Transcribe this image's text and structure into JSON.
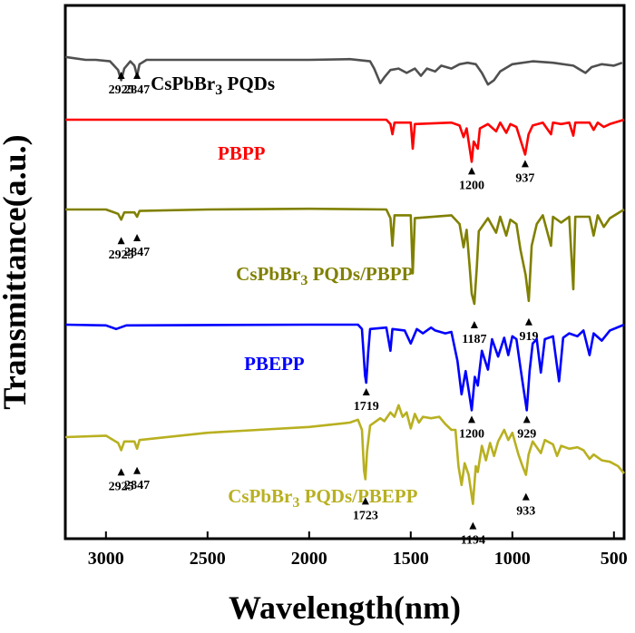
{
  "chart_data": {
    "type": "line",
    "title": "",
    "xlabel": "Wavelength(nm)",
    "ylabel": "Transmittance(a.u.)",
    "xlim": [
      3200,
      450
    ],
    "x_reversed": true,
    "x_ticks": [
      3000,
      2500,
      2000,
      1500,
      1000,
      500
    ],
    "y_ticks_shown": false,
    "grid": false,
    "legend": "inline labels",
    "series": [
      {
        "name": "CsPbBr",
        "sub": "3",
        "suffix": " PQDs",
        "color": "#505050",
        "label_wn": 2780,
        "points": [
          [
            3200,
            0.2
          ],
          [
            3100,
            0.0
          ],
          [
            3050,
            0.0
          ],
          [
            2980,
            -0.1
          ],
          [
            2940,
            -0.7
          ],
          [
            2925,
            -1.4
          ],
          [
            2910,
            -0.6
          ],
          [
            2880,
            -0.1
          ],
          [
            2860,
            -0.4
          ],
          [
            2847,
            -1.1
          ],
          [
            2835,
            -0.3
          ],
          [
            2800,
            0.0
          ],
          [
            2500,
            0.0
          ],
          [
            2000,
            0.0
          ],
          [
            1800,
            0.05
          ],
          [
            1700,
            -0.1
          ],
          [
            1680,
            -0.6
          ],
          [
            1650,
            -1.6
          ],
          [
            1630,
            -1.2
          ],
          [
            1600,
            -0.7
          ],
          [
            1560,
            -0.6
          ],
          [
            1520,
            -0.9
          ],
          [
            1480,
            -0.6
          ],
          [
            1450,
            -1.1
          ],
          [
            1420,
            -0.6
          ],
          [
            1380,
            -0.8
          ],
          [
            1350,
            -0.4
          ],
          [
            1300,
            -0.6
          ],
          [
            1260,
            -0.3
          ],
          [
            1220,
            -0.2
          ],
          [
            1180,
            -0.3
          ],
          [
            1150,
            -0.9
          ],
          [
            1120,
            -1.7
          ],
          [
            1090,
            -1.4
          ],
          [
            1060,
            -0.8
          ],
          [
            1000,
            -0.3
          ],
          [
            900,
            -0.1
          ],
          [
            800,
            -0.2
          ],
          [
            700,
            -0.4
          ],
          [
            640,
            -0.9
          ],
          [
            610,
            -0.5
          ],
          [
            560,
            -0.3
          ],
          [
            500,
            -0.4
          ],
          [
            460,
            -0.2
          ]
        ]
      },
      {
        "name": "PBPP",
        "sub": "",
        "suffix": "",
        "color": "#ff0000",
        "label_wn": 2450,
        "peaks": [
          1200,
          937
        ],
        "points": [
          [
            3200,
            0.0
          ],
          [
            2000,
            0.0
          ],
          [
            1620,
            0.0
          ],
          [
            1600,
            -0.3
          ],
          [
            1590,
            -1.0
          ],
          [
            1580,
            -0.2
          ],
          [
            1500,
            -0.2
          ],
          [
            1490,
            -2.0
          ],
          [
            1480,
            -0.3
          ],
          [
            1300,
            -0.2
          ],
          [
            1260,
            -0.4
          ],
          [
            1240,
            -1.2
          ],
          [
            1225,
            -0.6
          ],
          [
            1210,
            -2.0
          ],
          [
            1200,
            -2.9
          ],
          [
            1190,
            -1.5
          ],
          [
            1170,
            -2.0
          ],
          [
            1160,
            -0.6
          ],
          [
            1120,
            -0.3
          ],
          [
            1080,
            -0.8
          ],
          [
            1060,
            -0.2
          ],
          [
            1030,
            -0.9
          ],
          [
            1010,
            -0.3
          ],
          [
            980,
            -0.5
          ],
          [
            960,
            -1.4
          ],
          [
            937,
            -2.4
          ],
          [
            920,
            -1.0
          ],
          [
            900,
            -0.4
          ],
          [
            850,
            -0.2
          ],
          [
            810,
            -1.0
          ],
          [
            800,
            -0.2
          ],
          [
            760,
            -0.3
          ],
          [
            720,
            -0.2
          ],
          [
            700,
            -1.1
          ],
          [
            690,
            -0.2
          ],
          [
            620,
            -0.2
          ],
          [
            600,
            -0.7
          ],
          [
            580,
            -0.2
          ],
          [
            550,
            -0.5
          ],
          [
            520,
            -0.3
          ],
          [
            450,
            0.0
          ]
        ]
      },
      {
        "name": "CsPbBr",
        "sub": "3",
        "suffix": " PQDs/PBPP",
        "color": "#808000",
        "label_wn": 2360,
        "peaks": [
          2925,
          2847,
          1187,
          919
        ],
        "points": [
          [
            3200,
            0.0
          ],
          [
            3000,
            0.0
          ],
          [
            2940,
            -0.3
          ],
          [
            2925,
            -0.7
          ],
          [
            2910,
            -0.2
          ],
          [
            2860,
            -0.2
          ],
          [
            2847,
            -0.5
          ],
          [
            2835,
            -0.1
          ],
          [
            2500,
            0.0
          ],
          [
            2000,
            0.05
          ],
          [
            1620,
            0.0
          ],
          [
            1600,
            -0.6
          ],
          [
            1590,
            -2.5
          ],
          [
            1580,
            -0.4
          ],
          [
            1500,
            -0.4
          ],
          [
            1490,
            -4.4
          ],
          [
            1480,
            -0.6
          ],
          [
            1300,
            -0.4
          ],
          [
            1260,
            -1.0
          ],
          [
            1240,
            -2.6
          ],
          [
            1225,
            -1.4
          ],
          [
            1210,
            -4.0
          ],
          [
            1200,
            -5.8
          ],
          [
            1187,
            -6.5
          ],
          [
            1175,
            -4.0
          ],
          [
            1165,
            -1.5
          ],
          [
            1120,
            -0.6
          ],
          [
            1080,
            -1.6
          ],
          [
            1060,
            -0.5
          ],
          [
            1030,
            -1.8
          ],
          [
            1010,
            -0.7
          ],
          [
            980,
            -1.0
          ],
          [
            960,
            -2.8
          ],
          [
            935,
            -4.5
          ],
          [
            919,
            -6.3
          ],
          [
            905,
            -2.5
          ],
          [
            880,
            -1.0
          ],
          [
            850,
            -0.4
          ],
          [
            810,
            -2.5
          ],
          [
            800,
            -0.5
          ],
          [
            760,
            -0.9
          ],
          [
            720,
            -0.5
          ],
          [
            700,
            -5.5
          ],
          [
            690,
            -0.5
          ],
          [
            620,
            -0.5
          ],
          [
            600,
            -1.8
          ],
          [
            580,
            -0.4
          ],
          [
            550,
            -1.2
          ],
          [
            520,
            -0.6
          ],
          [
            450,
            0.0
          ]
        ]
      },
      {
        "name": "PBEPP",
        "sub": "",
        "suffix": "",
        "color": "#0000ff",
        "label_wn": 2320,
        "peaks": [
          1719,
          1200,
          929
        ],
        "points": [
          [
            3200,
            0.0
          ],
          [
            3000,
            -0.05
          ],
          [
            2950,
            -0.3
          ],
          [
            2900,
            -0.05
          ],
          [
            2000,
            0.0
          ],
          [
            1760,
            0.0
          ],
          [
            1740,
            -0.3
          ],
          [
            1725,
            -3.5
          ],
          [
            1719,
            -4.0
          ],
          [
            1710,
            -2.0
          ],
          [
            1700,
            -0.3
          ],
          [
            1620,
            -0.2
          ],
          [
            1600,
            -1.8
          ],
          [
            1590,
            -0.3
          ],
          [
            1530,
            -0.4
          ],
          [
            1500,
            -1.3
          ],
          [
            1470,
            -0.3
          ],
          [
            1440,
            -0.6
          ],
          [
            1400,
            -0.2
          ],
          [
            1380,
            -0.4
          ],
          [
            1330,
            -0.6
          ],
          [
            1300,
            -0.5
          ],
          [
            1270,
            -2.5
          ],
          [
            1250,
            -4.8
          ],
          [
            1230,
            -3.2
          ],
          [
            1215,
            -4.5
          ],
          [
            1200,
            -5.9
          ],
          [
            1185,
            -3.6
          ],
          [
            1170,
            -4.2
          ],
          [
            1150,
            -1.8
          ],
          [
            1120,
            -3.1
          ],
          [
            1100,
            -1.0
          ],
          [
            1070,
            -2.2
          ],
          [
            1040,
            -0.9
          ],
          [
            1020,
            -2.1
          ],
          [
            1000,
            -0.8
          ],
          [
            980,
            -1.0
          ],
          [
            960,
            -3.0
          ],
          [
            945,
            -4.4
          ],
          [
            929,
            -5.9
          ],
          [
            915,
            -3.2
          ],
          [
            900,
            -1.3
          ],
          [
            880,
            -1.0
          ],
          [
            860,
            -3.3
          ],
          [
            840,
            -1.0
          ],
          [
            800,
            -0.8
          ],
          [
            770,
            -3.9
          ],
          [
            750,
            -0.9
          ],
          [
            720,
            -0.6
          ],
          [
            680,
            -0.8
          ],
          [
            650,
            -0.4
          ],
          [
            620,
            -2.1
          ],
          [
            600,
            -0.6
          ],
          [
            560,
            -1.1
          ],
          [
            520,
            -0.4
          ],
          [
            450,
            0.0
          ]
        ]
      },
      {
        "name": "CsPbBr",
        "sub": "3",
        "suffix": " PQDs/PBEPP",
        "color": "#b8b020",
        "label_wn": 2400,
        "peaks": [
          2925,
          2847,
          1723,
          1194,
          933
        ],
        "points": [
          [
            3200,
            0.0
          ],
          [
            3000,
            0.1
          ],
          [
            2940,
            -0.4
          ],
          [
            2925,
            -0.9
          ],
          [
            2910,
            -0.3
          ],
          [
            2860,
            -0.3
          ],
          [
            2847,
            -0.8
          ],
          [
            2835,
            -0.2
          ],
          [
            2500,
            0.3
          ],
          [
            2000,
            0.7
          ],
          [
            1800,
            1.0
          ],
          [
            1760,
            1.2
          ],
          [
            1740,
            0.5
          ],
          [
            1730,
            -2.3
          ],
          [
            1723,
            -2.9
          ],
          [
            1715,
            -1.0
          ],
          [
            1700,
            0.8
          ],
          [
            1650,
            1.3
          ],
          [
            1630,
            1.1
          ],
          [
            1600,
            1.7
          ],
          [
            1580,
            1.4
          ],
          [
            1560,
            2.2
          ],
          [
            1540,
            1.4
          ],
          [
            1520,
            1.7
          ],
          [
            1500,
            0.6
          ],
          [
            1480,
            1.6
          ],
          [
            1460,
            1.0
          ],
          [
            1440,
            1.4
          ],
          [
            1400,
            1.3
          ],
          [
            1360,
            1.4
          ],
          [
            1330,
            0.9
          ],
          [
            1300,
            0.5
          ],
          [
            1280,
            0.5
          ],
          [
            1265,
            -2.0
          ],
          [
            1250,
            -3.3
          ],
          [
            1235,
            -1.8
          ],
          [
            1215,
            -2.6
          ],
          [
            1194,
            -4.6
          ],
          [
            1180,
            -2.0
          ],
          [
            1170,
            -2.4
          ],
          [
            1150,
            -0.6
          ],
          [
            1130,
            -1.6
          ],
          [
            1110,
            -0.4
          ],
          [
            1090,
            -1.3
          ],
          [
            1070,
            -0.3
          ],
          [
            1040,
            0.5
          ],
          [
            1020,
            -0.2
          ],
          [
            1000,
            0.3
          ],
          [
            970,
            -1.2
          ],
          [
            950,
            -2.0
          ],
          [
            933,
            -2.6
          ],
          [
            920,
            -1.2
          ],
          [
            900,
            -0.3
          ],
          [
            860,
            -1.1
          ],
          [
            840,
            -0.2
          ],
          [
            800,
            -0.5
          ],
          [
            780,
            -1.3
          ],
          [
            760,
            -0.6
          ],
          [
            720,
            -0.8
          ],
          [
            680,
            -0.7
          ],
          [
            650,
            -0.9
          ],
          [
            620,
            -1.5
          ],
          [
            600,
            -1.2
          ],
          [
            560,
            -1.6
          ],
          [
            520,
            -1.7
          ],
          [
            480,
            -2.0
          ],
          [
            450,
            -2.5
          ]
        ]
      }
    ]
  }
}
